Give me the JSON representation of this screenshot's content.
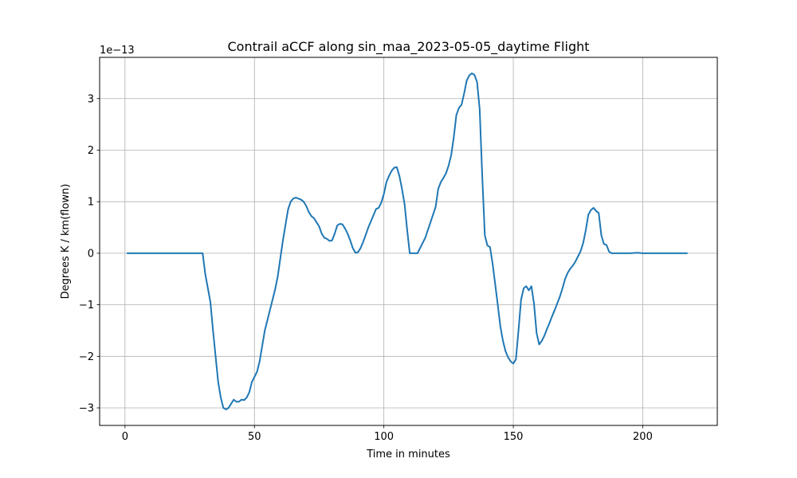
{
  "chart_data": {
    "type": "line",
    "title": "Contrail aCCF along sin_maa_2023-05-05_daytime Flight",
    "xlabel": "Time in minutes",
    "ylabel": "Degrees K / km(flown)",
    "y_offset_label": "1e−13",
    "xlim": [
      -9.8,
      228.8
    ],
    "ylim": [
      -3.34,
      3.8
    ],
    "x_ticks": [
      0,
      50,
      100,
      150,
      200
    ],
    "x_tick_labels": [
      "0",
      "50",
      "100",
      "150",
      "200"
    ],
    "y_ticks": [
      -3,
      -2,
      -1,
      0,
      1,
      2,
      3
    ],
    "y_tick_labels": [
      "−3",
      "−2",
      "−1",
      "0",
      "1",
      "2",
      "3"
    ],
    "grid": true,
    "line_color": "#1f77b4",
    "series": [
      {
        "x": [
          1,
          10,
          20,
          30,
          31,
          33,
          34,
          35,
          36,
          37,
          38,
          39,
          40,
          41,
          42,
          43,
          44,
          45,
          46,
          47,
          48,
          49,
          50,
          51,
          52,
          53,
          54,
          55,
          56,
          57,
          58,
          59,
          60,
          61,
          62,
          63,
          64,
          65,
          66,
          67,
          68,
          69,
          70,
          71,
          72,
          73,
          74,
          75,
          76,
          77,
          78,
          79,
          80,
          81,
          82,
          83,
          84,
          85,
          86,
          87,
          88,
          89,
          90,
          91,
          92,
          93,
          94,
          95,
          96,
          97,
          98,
          99,
          100,
          101,
          102,
          103,
          104,
          105,
          106,
          107,
          108,
          109,
          110,
          111,
          112,
          113,
          116,
          120,
          121,
          122,
          123,
          124,
          125,
          126,
          127,
          128,
          129,
          130,
          131,
          132,
          133,
          134,
          135,
          136,
          137,
          138,
          139,
          140,
          141,
          142,
          143,
          144,
          145,
          146,
          147,
          148,
          149,
          150,
          151,
          152,
          153,
          154,
          155,
          156,
          157,
          158,
          159,
          160,
          161,
          162,
          163,
          164,
          165,
          166,
          167,
          168,
          169,
          170,
          171,
          172,
          173,
          174,
          175,
          176,
          177,
          178,
          179,
          180,
          181,
          182,
          183,
          184,
          185,
          186,
          187,
          188,
          189,
          190,
          195,
          198,
          200,
          210,
          217
        ],
        "y": [
          0,
          0,
          0,
          0,
          -0.4,
          -0.95,
          -1.5,
          -2.0,
          -2.5,
          -2.8,
          -3.0,
          -3.03,
          -3.0,
          -2.92,
          -2.84,
          -2.88,
          -2.88,
          -2.84,
          -2.85,
          -2.8,
          -2.7,
          -2.5,
          -2.4,
          -2.3,
          -2.1,
          -1.8,
          -1.5,
          -1.3,
          -1.1,
          -0.9,
          -0.7,
          -0.45,
          -0.1,
          0.25,
          0.55,
          0.85,
          1.0,
          1.06,
          1.08,
          1.06,
          1.04,
          1.0,
          0.92,
          0.8,
          0.72,
          0.68,
          0.6,
          0.52,
          0.38,
          0.3,
          0.28,
          0.24,
          0.25,
          0.38,
          0.54,
          0.57,
          0.56,
          0.48,
          0.38,
          0.25,
          0.1,
          0.01,
          0.02,
          0.1,
          0.22,
          0.36,
          0.5,
          0.62,
          0.74,
          0.86,
          0.88,
          0.98,
          1.15,
          1.38,
          1.5,
          1.6,
          1.66,
          1.67,
          1.5,
          1.25,
          0.95,
          0.45,
          0.0,
          0.0,
          0.0,
          0.0,
          0.3,
          0.9,
          1.25,
          1.38,
          1.46,
          1.55,
          1.7,
          1.9,
          2.25,
          2.68,
          2.82,
          2.88,
          3.1,
          3.35,
          3.45,
          3.49,
          3.46,
          3.32,
          2.8,
          1.5,
          0.35,
          0.15,
          0.12,
          -0.2,
          -0.6,
          -1.0,
          -1.42,
          -1.7,
          -1.9,
          -2.02,
          -2.1,
          -2.14,
          -2.06,
          -1.5,
          -0.9,
          -0.68,
          -0.64,
          -0.72,
          -0.64,
          -0.98,
          -1.55,
          -1.77,
          -1.7,
          -1.6,
          -1.47,
          -1.35,
          -1.22,
          -1.1,
          -0.97,
          -0.84,
          -0.68,
          -0.5,
          -0.38,
          -0.3,
          -0.24,
          -0.16,
          -0.06,
          0.04,
          0.2,
          0.45,
          0.75,
          0.84,
          0.88,
          0.82,
          0.78,
          0.35,
          0.18,
          0.16,
          0.03,
          0.0,
          0.0,
          0.0,
          0.0,
          0.01,
          0.0,
          0.0,
          0.0
        ]
      }
    ]
  }
}
